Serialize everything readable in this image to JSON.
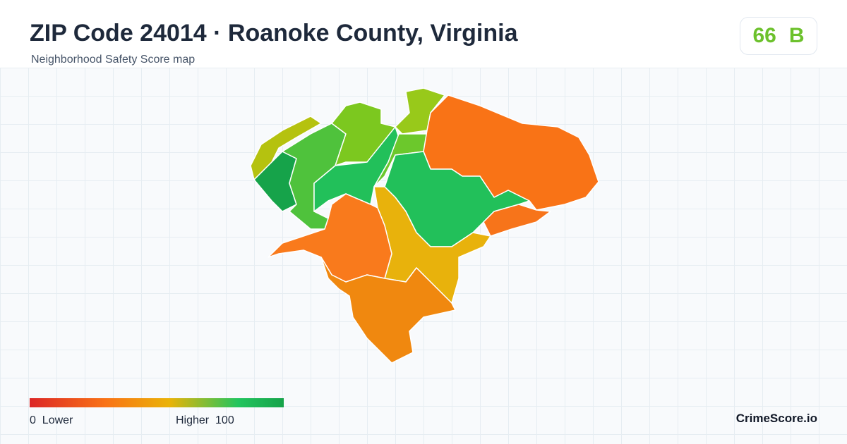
{
  "header": {
    "title": "ZIP Code 24014 · Roanoke County, Virginia",
    "subtitle": "Neighborhood Safety Score map"
  },
  "score": {
    "value": "66",
    "grade": "B"
  },
  "legend": {
    "min": "0",
    "min_label": "Lower",
    "max_label": "Higher",
    "max": "100"
  },
  "brand": "CrimeScore.io"
}
